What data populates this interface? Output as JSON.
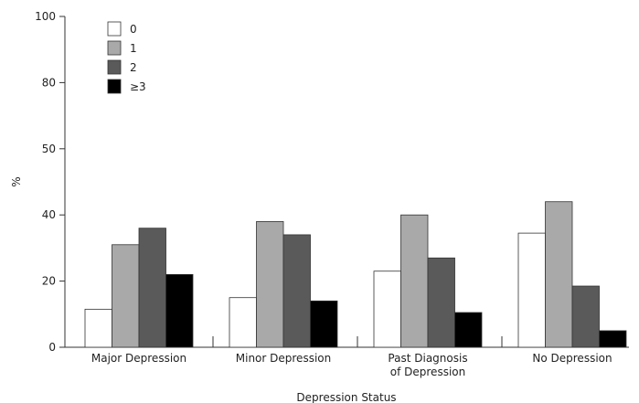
{
  "chart_data": {
    "type": "bar",
    "title": "",
    "xlabel": "Depression Status",
    "ylabel": "%",
    "y_ticks": [
      "0",
      "20",
      "40",
      "50",
      "80",
      "100"
    ],
    "y_axis_note": "tick spacing uniform although labels are 0,20,40,50,80,100",
    "ylim": [
      0,
      100
    ],
    "grid": false,
    "legend_position": "top-left",
    "categories": [
      [
        "Major Depression"
      ],
      [
        "Minor Depression"
      ],
      [
        "Past Diagnosis",
        "of Depression"
      ],
      [
        "No Depression"
      ]
    ],
    "series": [
      {
        "name": "0",
        "color": "#ffffff",
        "values": [
          11.5,
          15,
          23,
          34.5
        ]
      },
      {
        "name": "1",
        "color": "#a9a9a9",
        "values": [
          31,
          38,
          40,
          42
        ]
      },
      {
        "name": "2",
        "color": "#5a5a5a",
        "values": [
          36,
          34,
          27,
          18.5
        ]
      },
      {
        "name": "≥3",
        "color": "#000000",
        "values": [
          22,
          14,
          10.5,
          5
        ]
      }
    ]
  }
}
